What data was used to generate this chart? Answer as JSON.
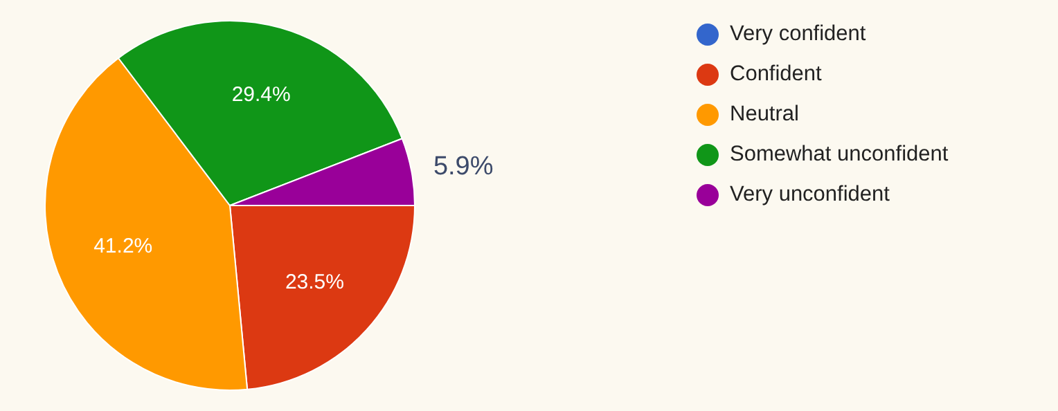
{
  "chart_data": {
    "type": "pie",
    "categories": [
      "Very confident",
      "Confident",
      "Neutral",
      "Somewhat unconfident",
      "Very unconfident"
    ],
    "values": [
      0,
      23.5,
      41.2,
      29.4,
      5.9
    ],
    "colors": [
      "#3366cc",
      "#dc3912",
      "#ff9900",
      "#109618",
      "#990099"
    ],
    "value_labels": [
      null,
      "23.5%",
      "41.2%",
      "29.4%",
      "5.9%"
    ],
    "legend": "right"
  }
}
